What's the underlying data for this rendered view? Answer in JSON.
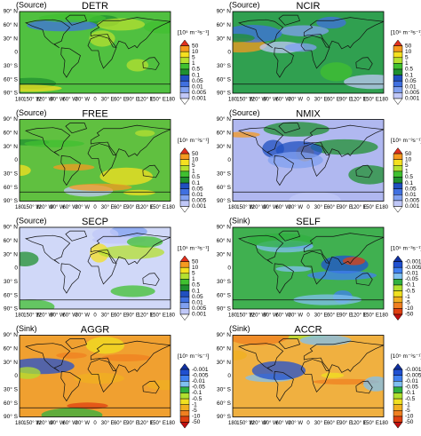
{
  "groups": [
    {
      "tag": "(Source)",
      "levels": [
        "50",
        "10",
        "5",
        "1",
        "0.5",
        "0.1",
        "0.05",
        "0.01",
        "0.005",
        "0.001"
      ],
      "colors": [
        "#e0301e",
        "#f59a20",
        "#f5e020",
        "#b5e030",
        "#40c030",
        "#209030",
        "#2050c0",
        "#4070e0",
        "#80a0f0",
        "#c0c8f8",
        "#ffffff"
      ],
      "panels": [
        {
          "name": "DETR",
          "color": "#50c040"
        },
        {
          "name": "NCIR",
          "color": "#30a050"
        },
        {
          "name": "FREE",
          "color": "#60c040"
        },
        {
          "name": "NMIX",
          "color": "#b0b8f0"
        },
        {
          "name": "SECP",
          "color": "#d0d8f8"
        }
      ]
    },
    {
      "tag": "(Sink)",
      "levels": [
        "-0.001",
        "-0.005",
        "-0.01",
        "-0.05",
        "-0.1",
        "-0.5",
        "-1",
        "-5",
        "-10",
        "-50"
      ],
      "colors": [
        "#1030a0",
        "#2050d0",
        "#4080f0",
        "#80c0f0",
        "#30b040",
        "#b0e030",
        "#f0e020",
        "#f0b020",
        "#f08020",
        "#e04010",
        "#c01010"
      ],
      "panels": [
        {
          "name": "SELF",
          "color": "#40b050"
        },
        {
          "name": "AGGR",
          "color": "#f0a030"
        },
        {
          "name": "ACCR",
          "color": "#f0b040"
        }
      ]
    }
  ],
  "units": "[10⁵ m⁻³s⁻¹]",
  "lat_labels": [
    "90° N",
    "60° N",
    "30° N",
    "0",
    "30° S",
    "60° S",
    "90° S"
  ],
  "lon_labels": [
    "180",
    "150° W",
    "120° W",
    "90° W",
    "60° W",
    "30° W",
    "0",
    "30° E",
    "60° E",
    "90° E",
    "120° E",
    "150° E",
    "180"
  ]
}
